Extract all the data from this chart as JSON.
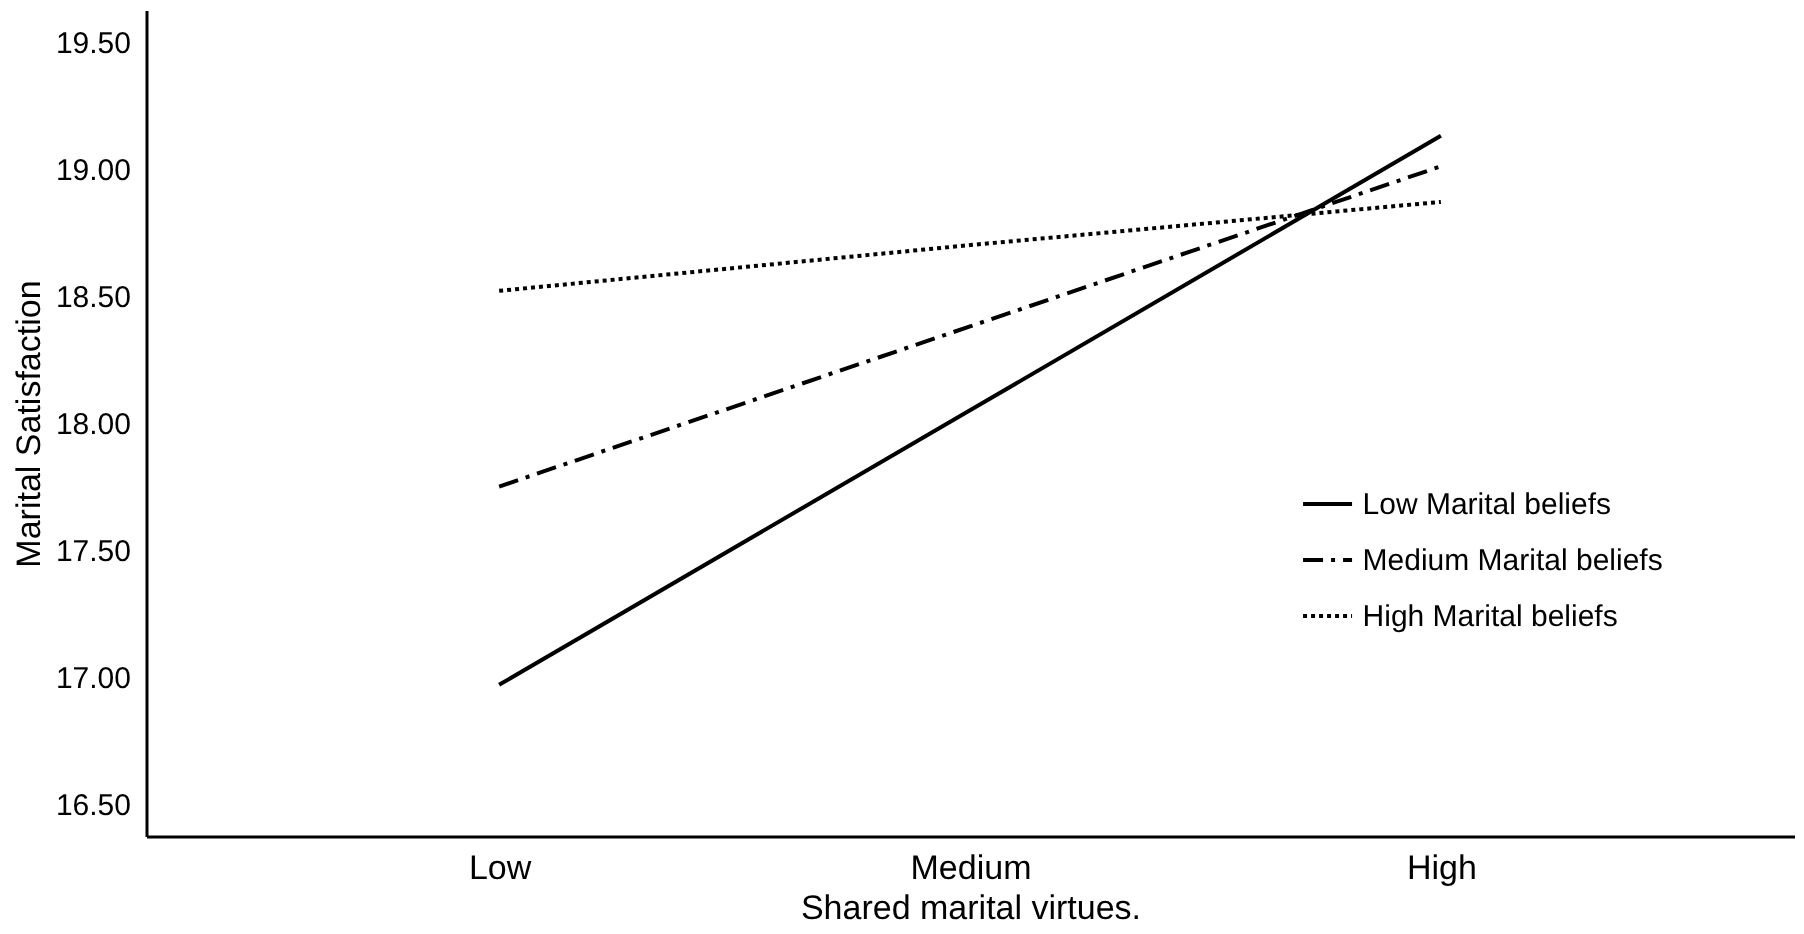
{
  "chart_data": {
    "type": "line",
    "xlabel": "Shared marital virtues.",
    "ylabel": "Marital Satisfaction",
    "categories": [
      "Low",
      "Medium",
      "High"
    ],
    "series": [
      {
        "name": "Low Marital beliefs",
        "color": "#000000",
        "line_style": "solid",
        "values": [
          16.97,
          18.05,
          19.13
        ]
      },
      {
        "name": "Medium Marital beliefs",
        "color": "#000000",
        "line_style": "dashdot",
        "values": [
          17.75,
          18.38,
          19.01
        ]
      },
      {
        "name": "High Marital beliefs",
        "color": "#000000",
        "line_style": "dotted",
        "values": [
          18.52,
          18.7,
          18.87
        ]
      }
    ],
    "ylim": [
      16.375,
      19.625
    ],
    "yticks": [
      {
        "value": 16.5,
        "label": "16.50"
      },
      {
        "value": 17,
        "label": "17.00"
      },
      {
        "value": 17.5,
        "label": "17.50"
      },
      {
        "value": 18,
        "label": "18.00"
      },
      {
        "value": 18.5,
        "label": "18.50"
      },
      {
        "value": 19,
        "label": "19.00"
      },
      {
        "value": 19.5,
        "label": "19.50"
      }
    ],
    "grid": false,
    "legend": "right",
    "marker": "none"
  }
}
